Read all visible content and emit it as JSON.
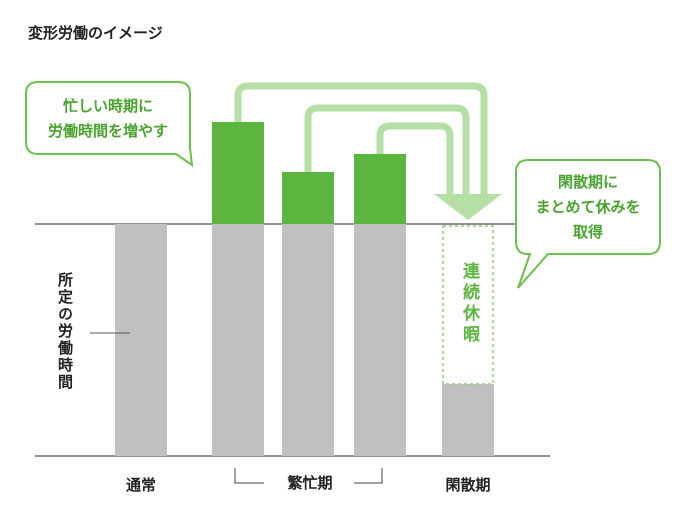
{
  "title": "変形労働のイメージ",
  "callout_left": [
    "忙しい時期に",
    "労働時間を増やす"
  ],
  "callout_right": [
    "閑散期に",
    "まとめて休みを",
    "取得"
  ],
  "axis_label": "所定の労働時間",
  "rest_label": "連続休暇",
  "categories": {
    "normal": "通常",
    "busy": "繁忙期",
    "quiet": "閑散期"
  },
  "colors": {
    "base": "#c0c0c0",
    "extra": "#5cb53e",
    "arrow": "#b6dfa6",
    "bubble_border": "#6cc04a",
    "text_green": "#4aa330"
  },
  "chart_data": {
    "type": "bar",
    "categories": [
      "通常",
      "繁忙期",
      "繁忙期",
      "繁忙期",
      "閑散期"
    ],
    "series": [
      {
        "values": [
          1,
          1,
          1,
          1,
          0.31
        ]
      },
      {
        "values": [
          0,
          0.44,
          0.22,
          0.3,
          0
        ]
      }
    ]
  }
}
